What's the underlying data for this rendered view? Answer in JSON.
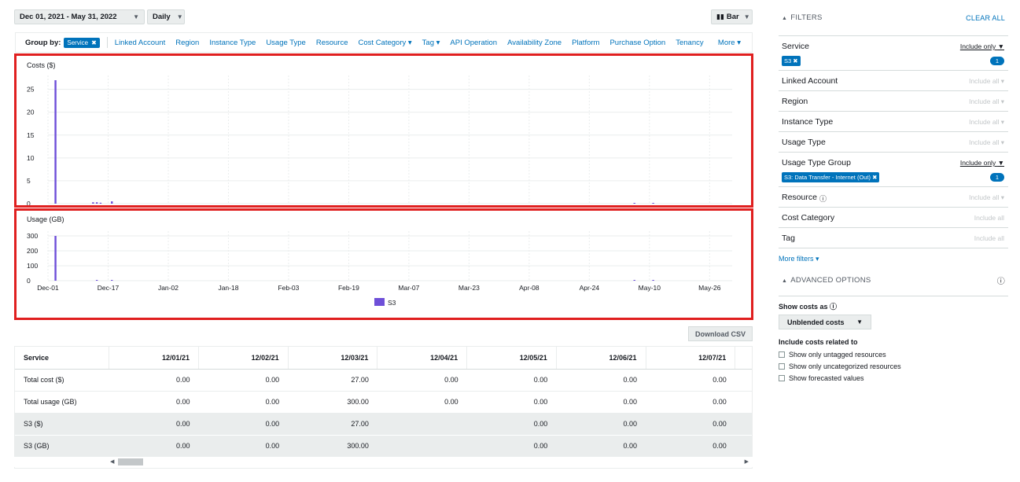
{
  "controls": {
    "date_range": "Dec 01, 2021 - May 31, 2022",
    "granularity": "Daily",
    "chart_style": "Bar"
  },
  "groupby": {
    "label": "Group by:",
    "selected": "Service",
    "options": [
      "Linked Account",
      "Region",
      "Instance Type",
      "Usage Type",
      "Resource",
      "Cost Category ▾",
      "Tag ▾",
      "API Operation",
      "Availability Zone",
      "Platform",
      "Purchase Option",
      "Tenancy"
    ],
    "more": "More"
  },
  "chart_data": [
    {
      "type": "bar",
      "ylabel": "Costs ($)",
      "ylim": [
        0,
        27
      ],
      "yticks": [
        0,
        5,
        10,
        15,
        20,
        25
      ],
      "xticks": [
        "Dec-01",
        "Dec-17",
        "Jan-02",
        "Jan-18",
        "Feb-03",
        "Feb-19",
        "Mar-07",
        "Mar-23",
        "Apr-08",
        "Apr-24",
        "May-10",
        "May-26"
      ],
      "series": [
        {
          "name": "S3",
          "color": "#6e4fd8",
          "points": [
            [
              "Dec-03",
              27.0
            ],
            [
              "Dec-13",
              0.3
            ],
            [
              "Dec-14",
              0.3
            ],
            [
              "Dec-15",
              0.2
            ],
            [
              "Dec-18",
              0.5
            ],
            [
              "May-06",
              0.1
            ],
            [
              "May-11",
              0.1
            ]
          ]
        }
      ]
    },
    {
      "type": "bar",
      "ylabel": "Usage (GB)",
      "ylim": [
        0,
        300
      ],
      "yticks": [
        0,
        100,
        200,
        300
      ],
      "xticks": [
        "Dec-01",
        "Dec-17",
        "Jan-02",
        "Jan-18",
        "Feb-03",
        "Feb-19",
        "Mar-07",
        "Mar-23",
        "Apr-08",
        "Apr-24",
        "May-10",
        "May-26"
      ],
      "series": [
        {
          "name": "S3",
          "color": "#6e4fd8",
          "points": [
            [
              "Dec-03",
              300
            ],
            [
              "Dec-14",
              2
            ],
            [
              "Dec-18",
              4
            ],
            [
              "May-06",
              2
            ],
            [
              "May-11",
              1
            ]
          ]
        }
      ],
      "legend": "S3"
    }
  ],
  "download_label": "Download CSV",
  "table": {
    "columns": [
      "Service",
      "12/01/21",
      "12/02/21",
      "12/03/21",
      "12/04/21",
      "12/05/21",
      "12/06/21",
      "12/07/21"
    ],
    "rows": [
      [
        "Total cost ($)",
        "0.00",
        "0.00",
        "27.00",
        "0.00",
        "0.00",
        "0.00",
        "0.00"
      ],
      [
        "Total usage (GB)",
        "0.00",
        "0.00",
        "300.00",
        "0.00",
        "0.00",
        "0.00",
        "0.00"
      ],
      [
        "S3 ($)",
        "0.00",
        "0.00",
        "27.00",
        "",
        "0.00",
        "0.00",
        "0.00"
      ],
      [
        "S3 (GB)",
        "0.00",
        "0.00",
        "300.00",
        "",
        "0.00",
        "0.00",
        "0.00"
      ]
    ]
  },
  "filters": {
    "title": "FILTERS",
    "clear": "CLEAR ALL",
    "items": [
      {
        "name": "Service",
        "mode": "Include only",
        "active": true,
        "tag": "S3 ✖",
        "count": "1"
      },
      {
        "name": "Linked Account",
        "mode": "Include all ▾",
        "active": false
      },
      {
        "name": "Region",
        "mode": "Include all ▾",
        "active": false
      },
      {
        "name": "Instance Type",
        "mode": "Include all ▾",
        "active": false
      },
      {
        "name": "Usage Type",
        "mode": "Include all ▾",
        "active": false
      },
      {
        "name": "Usage Type Group",
        "mode": "Include only",
        "active": true,
        "tag": "S3: Data Transfer - Internet (Out) ✖",
        "count": "1"
      },
      {
        "name": "Resource",
        "mode": "Include all ▾",
        "active": false
      },
      {
        "name": "Cost Category",
        "mode": "Include all",
        "active": false
      },
      {
        "name": "Tag",
        "mode": "Include all",
        "active": false
      }
    ],
    "more": "More filters"
  },
  "advanced": {
    "title": "ADVANCED OPTIONS",
    "show_costs_label": "Show costs as",
    "cost_type": "Unblended costs",
    "include_label": "Include costs related to",
    "options": [
      "Show only untagged resources",
      "Show only uncategorized resources",
      "Show forecasted values"
    ]
  }
}
